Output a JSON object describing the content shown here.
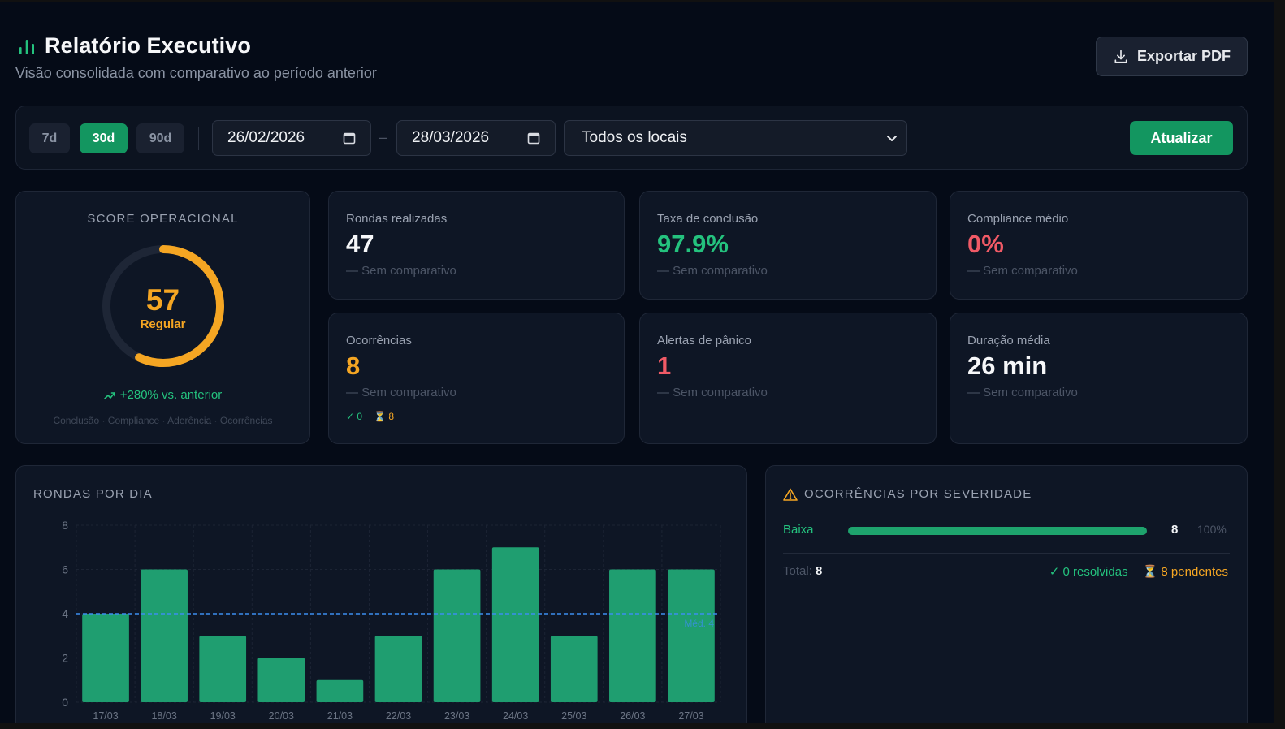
{
  "header": {
    "title": "Relatório Executivo",
    "subtitle": "Visão consolidada com comparativo ao período anterior",
    "export_label": "Exportar PDF"
  },
  "filters": {
    "periods": [
      "7d",
      "30d",
      "90d"
    ],
    "active_period": "30d",
    "date_from": "26/02/2026",
    "date_separator": "–",
    "date_to": "28/03/2026",
    "location": "Todos os locais",
    "refresh_label": "Atualizar"
  },
  "score": {
    "label": "SCORE OPERACIONAL",
    "value": "57",
    "value_fraction": 0.57,
    "status": "Regular",
    "trend": "+280% vs. anterior",
    "components": "Conclusão · Compliance · Aderência · Ocorrências",
    "color": "#f5a623"
  },
  "kpis": [
    {
      "label": "Rondas realizadas",
      "value": "47",
      "comparison": "— Sem comparativo",
      "color": "#f6f7f9"
    },
    {
      "label": "Taxa de conclusão",
      "value": "97.9%",
      "comparison": "— Sem comparativo",
      "color": "#24c27e"
    },
    {
      "label": "Compliance médio",
      "value": "0%",
      "comparison": "— Sem comparativo",
      "color": "#f05a66"
    },
    {
      "label": "Ocorrências",
      "value": "8",
      "comparison": "— Sem comparativo",
      "color": "#f5a623",
      "resolved": "✓ 0",
      "pending": "⏳ 8"
    },
    {
      "label": "Alertas de pânico",
      "value": "1",
      "comparison": "— Sem comparativo",
      "color": "#f05a66"
    },
    {
      "label": "Duração média",
      "value": "26 min",
      "comparison": "— Sem comparativo",
      "color": "#f6f7f9"
    }
  ],
  "rounds_chart": {
    "title": "RONDAS POR DIA",
    "average_label": "Méd. 4"
  },
  "chart_data": {
    "type": "bar",
    "categories": [
      "17/03",
      "18/03",
      "19/03",
      "20/03",
      "21/03",
      "22/03",
      "23/03",
      "24/03",
      "25/03",
      "26/03",
      "27/03"
    ],
    "values": [
      4,
      6,
      3,
      2,
      1,
      3,
      6,
      7,
      3,
      6,
      6
    ],
    "ylim": [
      0,
      8
    ],
    "yticks": [
      0,
      2,
      4,
      6,
      8
    ],
    "average": 4,
    "grid": true,
    "bar_color": "#1f9e70",
    "average_color": "#3b8ef0"
  },
  "severity": {
    "title": "OCORRÊNCIAS POR SEVERIDADE",
    "rows": [
      {
        "name": "Baixa",
        "count": "8",
        "pct": "100%",
        "fraction": 1.0
      }
    ],
    "total_label": "Total:",
    "total_value": "8",
    "resolved": "✓ 0 resolvidas",
    "pending": "⏳ 8 pendentes"
  }
}
